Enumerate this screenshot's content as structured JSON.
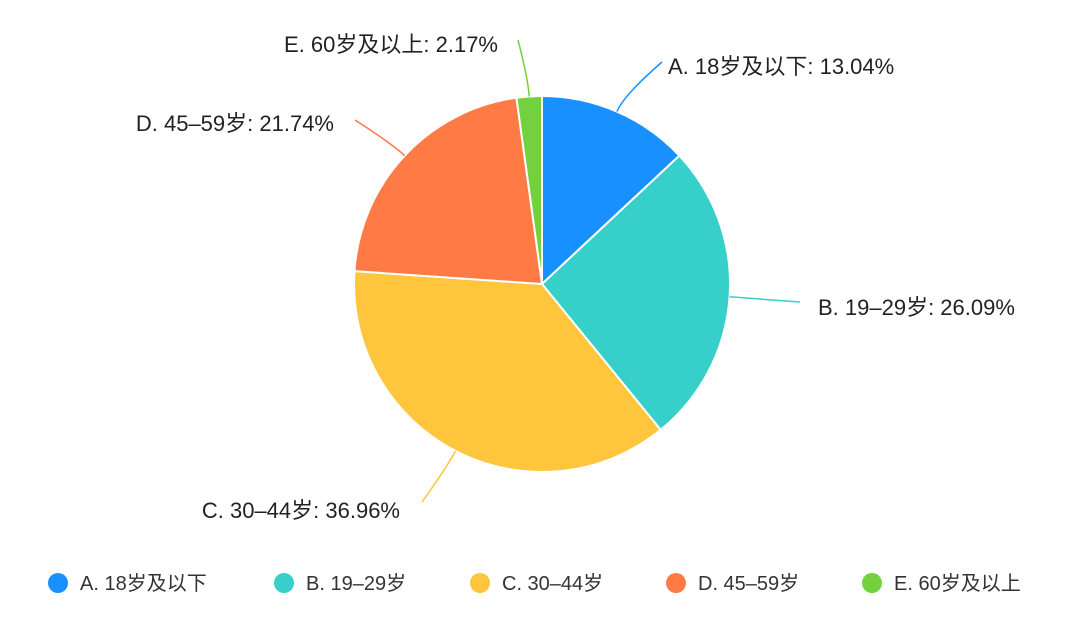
{
  "chart_data": {
    "type": "pie",
    "categories": [
      "A. 18岁及以下",
      "B. 19–29岁",
      "C. 30–44岁",
      "D. 45–59岁",
      "E. 60岁及以上"
    ],
    "values": [
      13.04,
      26.09,
      36.96,
      21.74,
      2.17
    ],
    "data_labels": [
      "A. 18岁及以下: 13.04%",
      "B. 19–29岁: 26.09%",
      "C. 30–44岁: 36.96%",
      "D. 45–59岁: 21.74%",
      "E. 60岁及以上: 2.17%"
    ],
    "colors": [
      "#1890ff",
      "#36cfc9",
      "#ffc53d",
      "#ff7a45",
      "#73d13d"
    ],
    "legend_position": "bottom"
  }
}
